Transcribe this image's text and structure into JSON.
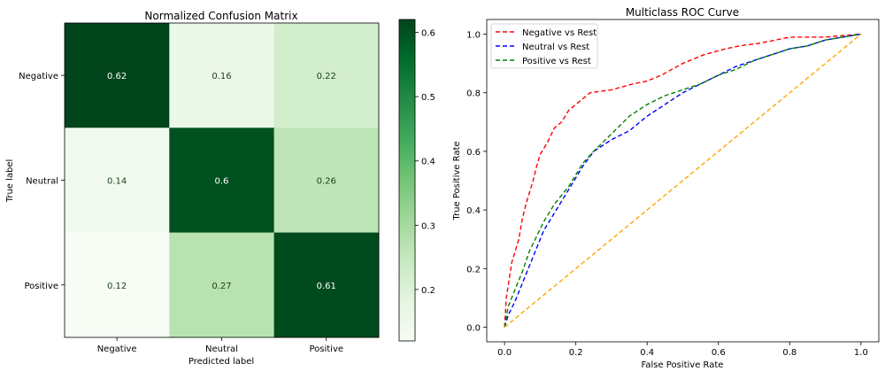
{
  "chart_data": [
    {
      "type": "heatmap",
      "title": "Normalized Confusion Matrix",
      "xlabel": "Predicted label",
      "ylabel": "True label",
      "x_categories": [
        "Negative",
        "Neutral",
        "Positive"
      ],
      "y_categories": [
        "Negative",
        "Neutral",
        "Positive"
      ],
      "values": [
        [
          0.62,
          0.16,
          0.22
        ],
        [
          0.14,
          0.6,
          0.26
        ],
        [
          0.12,
          0.27,
          0.61
        ]
      ],
      "value_labels": [
        [
          "0.62",
          "0.16",
          "0.22"
        ],
        [
          "0.14",
          "0.6",
          "0.26"
        ],
        [
          "0.12",
          "0.27",
          "0.61"
        ]
      ],
      "colormap": "Greens",
      "vmin": 0.12,
      "vmax": 0.62,
      "colorbar_ticks": [
        "0.2",
        "0.3",
        "0.4",
        "0.5",
        "0.6"
      ],
      "colorbar_tick_values": [
        0.2,
        0.3,
        0.4,
        0.5,
        0.6
      ]
    },
    {
      "type": "line",
      "title": "Multiclass ROC Curve",
      "xlabel": "False Positive Rate",
      "ylabel": "True Positive Rate",
      "xlim": [
        -0.05,
        1.05
      ],
      "ylim": [
        -0.05,
        1.05
      ],
      "x_ticks": [
        "0.0",
        "0.2",
        "0.4",
        "0.6",
        "0.8",
        "1.0"
      ],
      "y_ticks": [
        "0.0",
        "0.2",
        "0.4",
        "0.6",
        "0.8",
        "1.0"
      ],
      "tick_values": [
        0,
        0.2,
        0.4,
        0.6,
        0.8,
        1.0
      ],
      "legend_position": "top-left",
      "grid": false,
      "series": [
        {
          "name": "Negative vs Rest",
          "color": "#ff0000",
          "style": "dashed",
          "points": [
            [
              0,
              0
            ],
            [
              0.005,
              0.1
            ],
            [
              0.01,
              0.14
            ],
            [
              0.02,
              0.22
            ],
            [
              0.03,
              0.26
            ],
            [
              0.04,
              0.3
            ],
            [
              0.05,
              0.37
            ],
            [
              0.06,
              0.42
            ],
            [
              0.07,
              0.46
            ],
            [
              0.08,
              0.5
            ],
            [
              0.09,
              0.55
            ],
            [
              0.1,
              0.59
            ],
            [
              0.12,
              0.63
            ],
            [
              0.14,
              0.68
            ],
            [
              0.16,
              0.7
            ],
            [
              0.18,
              0.74
            ],
            [
              0.2,
              0.76
            ],
            [
              0.24,
              0.8
            ],
            [
              0.3,
              0.81
            ],
            [
              0.36,
              0.83
            ],
            [
              0.4,
              0.84
            ],
            [
              0.44,
              0.86
            ],
            [
              0.5,
              0.9
            ],
            [
              0.56,
              0.93
            ],
            [
              0.62,
              0.95
            ],
            [
              0.66,
              0.96
            ],
            [
              0.72,
              0.97
            ],
            [
              0.76,
              0.98
            ],
            [
              0.8,
              0.99
            ],
            [
              0.9,
              0.99
            ],
            [
              1.0,
              1.0
            ]
          ]
        },
        {
          "name": "Neutral vs Rest",
          "color": "#0000ff",
          "style": "dashed",
          "points": [
            [
              0,
              0
            ],
            [
              0.01,
              0.04
            ],
            [
              0.03,
              0.09
            ],
            [
              0.05,
              0.15
            ],
            [
              0.07,
              0.21
            ],
            [
              0.09,
              0.27
            ],
            [
              0.11,
              0.33
            ],
            [
              0.13,
              0.37
            ],
            [
              0.16,
              0.43
            ],
            [
              0.2,
              0.51
            ],
            [
              0.22,
              0.55
            ],
            [
              0.25,
              0.6
            ],
            [
              0.3,
              0.64
            ],
            [
              0.35,
              0.67
            ],
            [
              0.4,
              0.72
            ],
            [
              0.45,
              0.76
            ],
            [
              0.5,
              0.8
            ],
            [
              0.55,
              0.83
            ],
            [
              0.6,
              0.86
            ],
            [
              0.65,
              0.89
            ],
            [
              0.7,
              0.91
            ],
            [
              0.75,
              0.93
            ],
            [
              0.8,
              0.95
            ],
            [
              0.85,
              0.96
            ],
            [
              0.9,
              0.98
            ],
            [
              0.95,
              0.99
            ],
            [
              1.0,
              1.0
            ]
          ]
        },
        {
          "name": "Positive vs Rest",
          "color": "#008000",
          "style": "dashed",
          "points": [
            [
              0,
              0
            ],
            [
              0.01,
              0.07
            ],
            [
              0.03,
              0.13
            ],
            [
              0.05,
              0.19
            ],
            [
              0.07,
              0.26
            ],
            [
              0.09,
              0.31
            ],
            [
              0.11,
              0.36
            ],
            [
              0.14,
              0.42
            ],
            [
              0.18,
              0.48
            ],
            [
              0.22,
              0.56
            ],
            [
              0.25,
              0.6
            ],
            [
              0.3,
              0.66
            ],
            [
              0.35,
              0.72
            ],
            [
              0.4,
              0.76
            ],
            [
              0.45,
              0.79
            ],
            [
              0.5,
              0.81
            ],
            [
              0.55,
              0.83
            ],
            [
              0.6,
              0.86
            ],
            [
              0.65,
              0.88
            ],
            [
              0.7,
              0.91
            ],
            [
              0.75,
              0.93
            ],
            [
              0.8,
              0.95
            ],
            [
              0.85,
              0.96
            ],
            [
              0.9,
              0.98
            ],
            [
              0.95,
              0.99
            ],
            [
              1.0,
              1.0
            ]
          ]
        },
        {
          "name": "",
          "color": "#ffa500",
          "style": "dashed",
          "points": [
            [
              0,
              0
            ],
            [
              1,
              1
            ]
          ]
        }
      ]
    }
  ]
}
